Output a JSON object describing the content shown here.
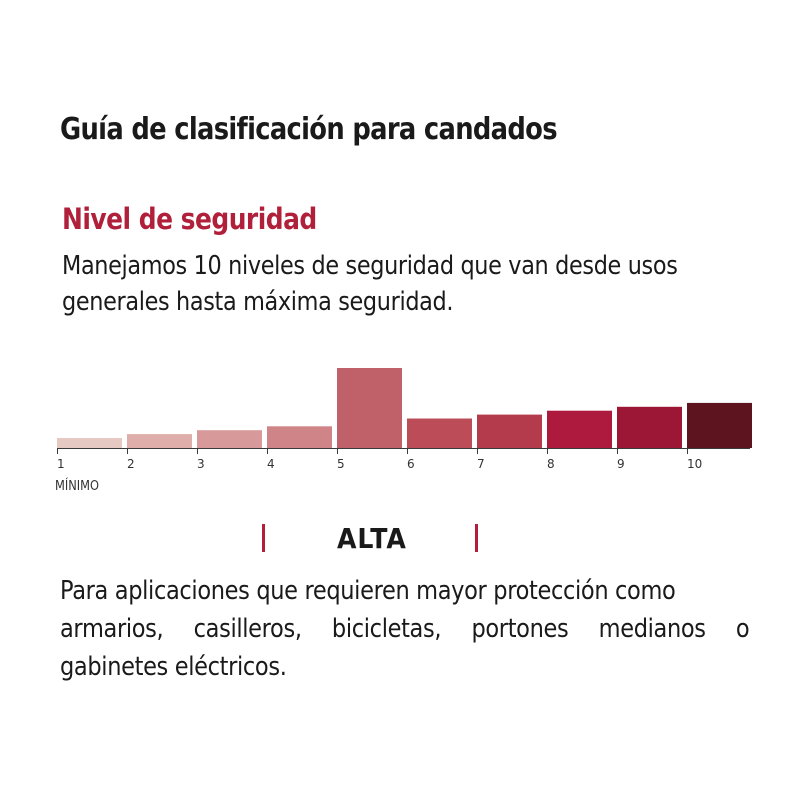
{
  "page": {
    "title": "Guía de clasificación para candados",
    "subtitle": "Nivel de seguridad",
    "intro_lines": [
      "Manejamos 10 niveles de seguridad que van desde usos",
      "generales hasta máxima seguridad."
    ]
  },
  "level_scale": {
    "levels": [
      1,
      2,
      3,
      4,
      5,
      6,
      7,
      8,
      9,
      10
    ],
    "highlighted_level": 5,
    "min_caption": "MÍNIMO",
    "colors": [
      "#e6c9c3",
      "#dfaeaa",
      "#d8999a",
      "#cf8487",
      "#c0616a",
      "#bb4c58",
      "#b33b4b",
      "#ad1a3d",
      "#9c1735",
      "#5e141f"
    ],
    "label_color": "#333333"
  },
  "band": {
    "label": "ALTA",
    "marker_color": "#b0203a"
  },
  "description": {
    "lines": [
      "Para aplicaciones que requieren mayor protección como",
      "armarios, casilleros, bicicletas, portones medianos o",
      "gabinetes eléctricos."
    ]
  },
  "colors": {
    "accent": "#b0203a",
    "text": "#1a1a1a"
  }
}
